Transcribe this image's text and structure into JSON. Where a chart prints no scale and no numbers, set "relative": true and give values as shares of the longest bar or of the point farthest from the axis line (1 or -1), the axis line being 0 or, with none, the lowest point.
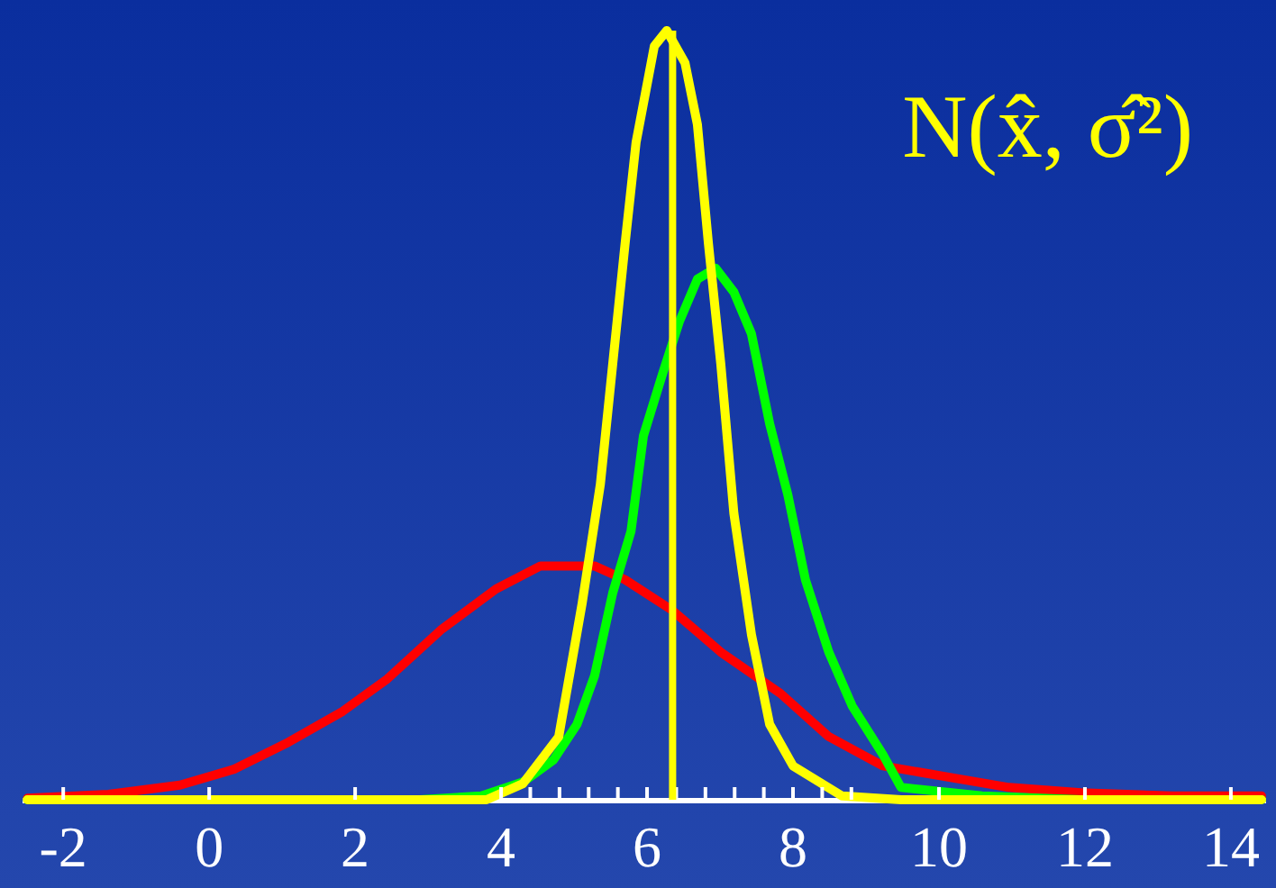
{
  "chart_data": {
    "type": "line",
    "relative": true,
    "grid": false,
    "marker": "none",
    "line_style": "solid",
    "xlim": [
      -2.57,
      14.47
    ],
    "xticks": [
      -2,
      0,
      2,
      4,
      {
        "value": 4.4,
        "label": null
      },
      {
        "value": 4.8,
        "label": null
      },
      {
        "value": 5.2,
        "label": null
      },
      {
        "value": 5.6,
        "label": null
      },
      6,
      {
        "value": 6.4,
        "label": null
      },
      {
        "value": 6.8,
        "label": null
      },
      {
        "value": 7.2,
        "label": null
      },
      {
        "value": 7.6,
        "label": null
      },
      8,
      {
        "value": 8.4,
        "label": null
      },
      {
        "value": 8.8,
        "label": null
      },
      10,
      12,
      14
    ],
    "annotations": [
      "N(x̂, σ̂²)"
    ],
    "ref_lines": [
      {
        "axis": "x",
        "value": 6.35,
        "color": "#ffff00"
      }
    ],
    "series": [
      {
        "color": "#ff0000",
        "x": [
          -2.49,
          -1.38,
          -0.4,
          0.35,
          1.09,
          1.83,
          2.44,
          3.19,
          3.93,
          4.54,
          5.28,
          5.7,
          6.35,
          7.01,
          7.83,
          8.49,
          9.23,
          10.22,
          10.96,
          11.95,
          13.19,
          14.42
        ],
        "values": [
          0.002,
          0.007,
          0.019,
          0.04,
          0.075,
          0.115,
          0.157,
          0.222,
          0.274,
          0.304,
          0.304,
          0.286,
          0.246,
          0.192,
          0.138,
          0.082,
          0.044,
          0.028,
          0.016,
          0.009,
          0.005,
          0.005
        ]
      },
      {
        "color": "#00ff00",
        "x": [
          -2.49,
          2.07,
          2.89,
          3.73,
          4.3,
          4.72,
          5.04,
          5.28,
          5.53,
          5.78,
          5.95,
          6.2,
          6.44,
          6.69,
          6.94,
          7.19,
          7.43,
          7.68,
          7.93,
          8.17,
          8.49,
          8.81,
          9.23,
          9.48,
          10.59,
          11.95,
          14.42
        ],
        "values": [
          0,
          0,
          0,
          0.005,
          0.023,
          0.052,
          0.098,
          0.161,
          0.269,
          0.349,
          0.473,
          0.55,
          0.621,
          0.677,
          0.691,
          0.66,
          0.606,
          0.489,
          0.396,
          0.286,
          0.192,
          0.122,
          0.059,
          0.016,
          0.005,
          0,
          0
        ]
      },
      {
        "color": "#ffff00",
        "x": [
          -2.49,
          3.8,
          4.3,
          4.79,
          5.11,
          5.36,
          5.53,
          5.7,
          5.85,
          6.1,
          6.27,
          6.52,
          6.69,
          6.84,
          7.01,
          7.19,
          7.43,
          7.68,
          8.0,
          8.67,
          9.48,
          11.95,
          14.42
        ],
        "values": [
          0,
          0,
          0.021,
          0.082,
          0.255,
          0.41,
          0.567,
          0.724,
          0.855,
          0.98,
          1,
          0.958,
          0.878,
          0.724,
          0.567,
          0.372,
          0.215,
          0.098,
          0.044,
          0.005,
          0,
          0,
          0
        ]
      }
    ]
  }
}
